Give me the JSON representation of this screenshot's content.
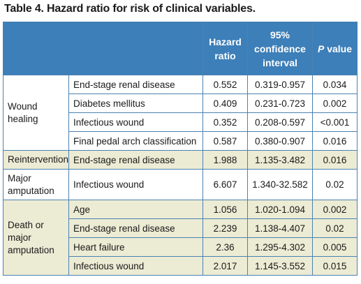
{
  "title": "Table 4. Hazard ratio for risk of clinical variables.",
  "headers": {
    "hazard_ratio": "Hazard ratio",
    "confidence_interval": "95% confidence interval",
    "p_value": "P value"
  },
  "groups": {
    "wound_healing": "Wound healing",
    "reintervention": "Reintervention",
    "major_amputation": "Major amputation",
    "death_or_major_amputation": "Death or major amputation"
  },
  "rows": [
    {
      "variable": "End-stage renal disease",
      "hr": "0.552",
      "ci": "0.319-0.957",
      "p": "0.034"
    },
    {
      "variable": "Diabetes mellitus",
      "hr": "0.409",
      "ci": "0.231-0.723",
      "p": "0.002"
    },
    {
      "variable": "Infectious wound",
      "hr": "0.352",
      "ci": "0.208-0.597",
      "p": "<0.001"
    },
    {
      "variable": "Final pedal arch classification",
      "hr": "0.587",
      "ci": "0.380-0.907",
      "p": "0.016"
    },
    {
      "variable": "End-stage renal disease",
      "hr": "1.988",
      "ci": "1.135-3.482",
      "p": "0.016"
    },
    {
      "variable": "Infectious wound",
      "hr": "6.607",
      "ci": "1.340-32.582",
      "p": "0.02"
    },
    {
      "variable": "Age",
      "hr": "1.056",
      "ci": "1.020-1.094",
      "p": "0.002"
    },
    {
      "variable": "End-stage renal disease",
      "hr": "2.239",
      "ci": "1.138-4.407",
      "p": "0.02"
    },
    {
      "variable": "Heart failure",
      "hr": "2.36",
      "ci": "1.295-4.302",
      "p": "0.005"
    },
    {
      "variable": "Infectious wound",
      "hr": "2.017",
      "ci": "1.145-3.552",
      "p": "0.015"
    }
  ],
  "colors": {
    "header_bg": "#3d7fb8",
    "shaded_row_bg": "#ecebd4",
    "border": "#4a82b2"
  }
}
